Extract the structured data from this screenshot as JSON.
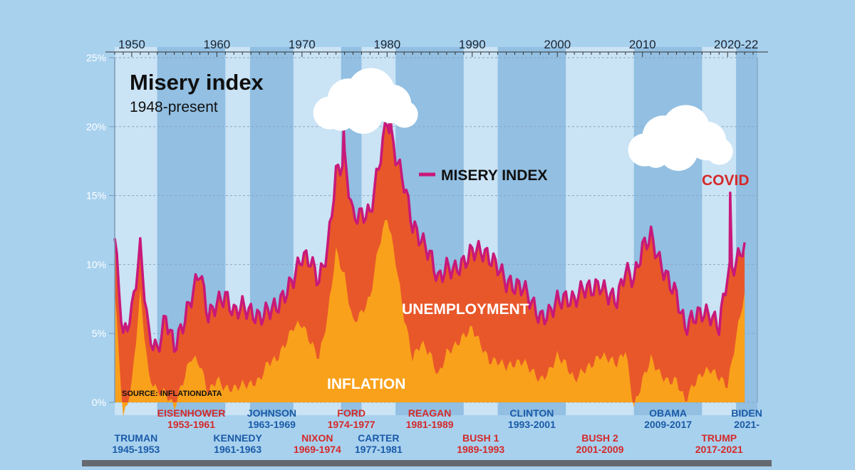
{
  "title": "Misery index",
  "subtitle": "1948-present",
  "source": "SOURCE: INFLATIONDATA",
  "labels": {
    "misery": "MISERY INDEX",
    "covid": "COVID",
    "unemployment": "UNEMPLOYMENT",
    "inflation": "INFLATION"
  },
  "colors": {
    "background": "#a8d1ee",
    "band_light": "#cde4f5",
    "band_dark": "#8fbce0",
    "inflation": "#f9a11b",
    "unemployment": "#e8572a",
    "misery": "#c8187a",
    "republican": "#d42a2a",
    "democrat": "#1a5ba8"
  },
  "chart_data": {
    "type": "area",
    "title": "Misery index",
    "subtitle": "1948-present",
    "xlim": [
      1948,
      2023.5
    ],
    "ylim": [
      -2,
      25
    ],
    "yticks": [
      "0%",
      "5%",
      "10%",
      "15%",
      "20%",
      "25%"
    ],
    "xticks": [
      "1950",
      "1960",
      "1970",
      "1980",
      "1990",
      "2000",
      "2010",
      "2020-22"
    ],
    "x": [
      1948,
      1949,
      1950,
      1951,
      1952,
      1953,
      1954,
      1955,
      1956,
      1957,
      1958,
      1959,
      1960,
      1961,
      1962,
      1963,
      1964,
      1965,
      1966,
      1967,
      1968,
      1969,
      1970,
      1971,
      1972,
      1973,
      1974,
      1975,
      1976,
      1977,
      1978,
      1979,
      1980,
      1981,
      1982,
      1983,
      1984,
      1985,
      1986,
      1987,
      1988,
      1989,
      1990,
      1991,
      1992,
      1993,
      1994,
      1995,
      1996,
      1997,
      1998,
      1999,
      2000,
      2001,
      2002,
      2003,
      2004,
      2005,
      2006,
      2007,
      2008,
      2009,
      2010,
      2011,
      2012,
      2013,
      2014,
      2015,
      2016,
      2017,
      2018,
      2019,
      2020,
      2021,
      2022
    ],
    "series": [
      {
        "name": "INFLATION",
        "values": [
          8.1,
          -1.2,
          1.3,
          7.9,
          1.9,
          0.8,
          0.7,
          -0.4,
          1.5,
          3.3,
          2.8,
          0.7,
          1.7,
          1.0,
          1.0,
          1.3,
          1.3,
          1.6,
          2.9,
          3.1,
          4.2,
          5.5,
          5.7,
          4.4,
          3.2,
          6.2,
          11.0,
          9.1,
          5.8,
          6.5,
          7.6,
          11.3,
          13.5,
          10.3,
          6.2,
          3.2,
          4.3,
          3.6,
          1.9,
          3.6,
          4.1,
          4.8,
          5.4,
          4.2,
          3.0,
          3.0,
          2.6,
          2.8,
          3.0,
          2.3,
          1.6,
          2.2,
          3.4,
          2.8,
          1.6,
          2.3,
          2.7,
          3.4,
          3.2,
          2.8,
          3.8,
          -0.4,
          1.6,
          3.2,
          2.1,
          1.5,
          1.6,
          0.1,
          1.3,
          2.1,
          2.4,
          1.8,
          1.2,
          4.7,
          8.0
        ]
      },
      {
        "name": "UNEMPLOYMENT",
        "values": [
          3.8,
          5.9,
          5.3,
          3.3,
          3.0,
          2.9,
          5.5,
          4.4,
          4.1,
          4.3,
          6.8,
          5.5,
          5.5,
          6.7,
          5.5,
          5.7,
          5.2,
          4.5,
          3.8,
          3.8,
          3.6,
          3.5,
          4.9,
          5.9,
          5.6,
          4.9,
          5.6,
          8.5,
          7.7,
          7.1,
          6.1,
          5.8,
          7.1,
          7.6,
          9.7,
          9.6,
          7.5,
          7.2,
          7.0,
          6.2,
          5.5,
          5.3,
          5.6,
          6.8,
          7.5,
          6.9,
          6.1,
          5.6,
          5.4,
          4.9,
          4.5,
          4.2,
          4.0,
          4.7,
          5.8,
          6.0,
          5.5,
          5.1,
          4.6,
          4.6,
          5.8,
          9.3,
          9.6,
          8.9,
          8.1,
          7.4,
          6.2,
          5.3,
          4.9,
          4.4,
          3.9,
          3.7,
          8.1,
          5.4,
          3.6
        ]
      },
      {
        "name": "MISERY INDEX",
        "values": [
          11.9,
          4.7,
          6.6,
          11.2,
          4.9,
          3.7,
          6.2,
          4.0,
          5.6,
          7.6,
          9.6,
          6.2,
          7.2,
          7.7,
          6.5,
          7.0,
          6.5,
          6.1,
          6.7,
          6.9,
          7.8,
          9.0,
          10.6,
          10.3,
          8.8,
          11.1,
          16.6,
          17.6,
          13.5,
          13.6,
          13.7,
          17.1,
          20.6,
          17.9,
          15.9,
          12.8,
          11.8,
          10.8,
          8.9,
          9.8,
          9.6,
          10.1,
          11.0,
          11.0,
          10.5,
          9.9,
          8.7,
          8.4,
          8.4,
          7.2,
          6.1,
          6.4,
          7.4,
          7.5,
          7.4,
          8.3,
          8.2,
          8.5,
          7.8,
          7.4,
          9.6,
          8.9,
          11.2,
          12.1,
          10.2,
          8.9,
          7.8,
          5.4,
          6.2,
          6.5,
          6.3,
          5.5,
          9.3,
          10.1,
          11.6
        ]
      }
    ],
    "peaks": [
      {
        "x": 1974.9,
        "y": 19.8
      },
      {
        "x": 1980.3,
        "y": 21.9
      },
      {
        "x": 2020.3,
        "y": 15.2
      }
    ]
  },
  "presidents": [
    {
      "name": "TRUMAN",
      "years": "1945-1953",
      "start": 1948,
      "end": 1953,
      "party": "D",
      "row": "lower"
    },
    {
      "name": "EISENHOWER",
      "years": "1953-1961",
      "start": 1953,
      "end": 1961,
      "party": "R",
      "row": "upper"
    },
    {
      "name": "KENNEDY",
      "years": "1961-1963",
      "start": 1961,
      "end": 1963.9,
      "party": "D",
      "row": "lower"
    },
    {
      "name": "JOHNSON",
      "years": "1963-1969",
      "start": 1963.9,
      "end": 1969,
      "party": "D",
      "row": "upper"
    },
    {
      "name": "NIXON",
      "years": "1969-1974",
      "start": 1969,
      "end": 1974.6,
      "party": "R",
      "row": "lower"
    },
    {
      "name": "FORD",
      "years": "1974-1977",
      "start": 1974.6,
      "end": 1977,
      "party": "R",
      "row": "upper"
    },
    {
      "name": "CARTER",
      "years": "1977-1981",
      "start": 1977,
      "end": 1981,
      "party": "D",
      "row": "lower"
    },
    {
      "name": "REAGAN",
      "years": "1981-1989",
      "start": 1981,
      "end": 1989,
      "party": "R",
      "row": "upper"
    },
    {
      "name": "BUSH 1",
      "years": "1989-1993",
      "start": 1989,
      "end": 1993,
      "party": "R",
      "row": "lower"
    },
    {
      "name": "CLINTON",
      "years": "1993-2001",
      "start": 1993,
      "end": 2001,
      "party": "D",
      "row": "upper"
    },
    {
      "name": "BUSH 2",
      "years": "2001-2009",
      "start": 2001,
      "end": 2009,
      "party": "R",
      "row": "lower"
    },
    {
      "name": "OBAMA",
      "years": "2009-2017",
      "start": 2009,
      "end": 2017,
      "party": "D",
      "row": "upper"
    },
    {
      "name": "TRUMP",
      "years": "2017-2021",
      "start": 2017,
      "end": 2021,
      "party": "R",
      "row": "lower"
    },
    {
      "name": "BIDEN",
      "years": "2021-",
      "start": 2021,
      "end": 2023.5,
      "party": "D",
      "row": "upper"
    }
  ]
}
